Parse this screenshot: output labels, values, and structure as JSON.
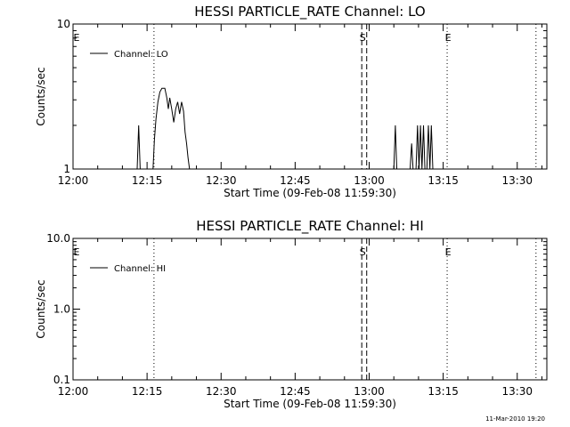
{
  "footer": {
    "timestamp": "11-Mar-2010 19:20"
  },
  "chart_data": [
    {
      "type": "line",
      "title": "HESSI PARTICLE_RATE Channel: LO",
      "xlabel": "Start Time (09-Feb-08 11:59:30)",
      "ylabel": "Counts/sec",
      "x_unit": "minutes after 12:00",
      "xlim": [
        0,
        96
      ],
      "ylim": [
        1,
        10
      ],
      "yscale": "log",
      "grid": false,
      "legend_position": "top-left",
      "x_ticks": [
        {
          "x": 0,
          "label": "12:00"
        },
        {
          "x": 15,
          "label": "12:15"
        },
        {
          "x": 30,
          "label": "12:30"
        },
        {
          "x": 45,
          "label": "12:45"
        },
        {
          "x": 60,
          "label": "13:00"
        },
        {
          "x": 75,
          "label": "13:15"
        },
        {
          "x": 90,
          "label": "13:30"
        }
      ],
      "y_ticks": [
        {
          "y": 1,
          "label": "1"
        },
        {
          "y": 10,
          "label": "10"
        }
      ],
      "series": [
        {
          "name": "Channel: LO",
          "color": "#000000",
          "segments": [
            [
              [
                13.0,
                1
              ],
              [
                13.3,
                2
              ],
              [
                13.6,
                1
              ]
            ],
            [
              [
                16.2,
                1
              ],
              [
                16.5,
                1.6
              ],
              [
                16.8,
                2.2
              ],
              [
                17.2,
                2.9
              ],
              [
                17.6,
                3.4
              ],
              [
                18.0,
                3.6
              ],
              [
                18.6,
                3.6
              ],
              [
                19.0,
                3.1
              ],
              [
                19.3,
                2.6
              ],
              [
                19.6,
                3.1
              ],
              [
                20.0,
                2.6
              ],
              [
                20.4,
                2.1
              ],
              [
                20.8,
                2.6
              ],
              [
                21.2,
                2.9
              ],
              [
                21.6,
                2.4
              ],
              [
                22.0,
                2.9
              ],
              [
                22.4,
                2.5
              ],
              [
                22.7,
                1.8
              ],
              [
                23.0,
                1.5
              ],
              [
                23.3,
                1.2
              ],
              [
                23.6,
                1
              ]
            ],
            [
              [
                65.0,
                1
              ],
              [
                65.3,
                2
              ],
              [
                65.6,
                1
              ]
            ],
            [
              [
                68.3,
                1
              ],
              [
                68.6,
                1.5
              ],
              [
                68.9,
                1
              ]
            ],
            [
              [
                69.5,
                1
              ],
              [
                69.8,
                2
              ],
              [
                70.1,
                1
              ],
              [
                70.4,
                2
              ],
              [
                70.7,
                1
              ],
              [
                71.0,
                2
              ],
              [
                71.3,
                1
              ]
            ],
            [
              [
                71.7,
                1
              ],
              [
                72.0,
                2
              ],
              [
                72.3,
                1
              ],
              [
                72.6,
                2
              ],
              [
                72.9,
                1
              ]
            ]
          ]
        }
      ],
      "markers": [
        {
          "x": 16.4,
          "label": "",
          "style": "dotted"
        },
        {
          "x": 75.8,
          "label": "E",
          "style": "dotted"
        },
        {
          "x": 93.8,
          "label": "",
          "style": "dotted"
        },
        {
          "x": 58.5,
          "label": "S",
          "style": "dashed"
        },
        {
          "x": 59.5,
          "label": "",
          "style": "dashed"
        }
      ],
      "edge_label": "E"
    },
    {
      "type": "line",
      "title": "HESSI PARTICLE_RATE Channel: HI",
      "xlabel": "Start Time (09-Feb-08 11:59:30)",
      "ylabel": "Counts/sec",
      "x_unit": "minutes after 12:00",
      "xlim": [
        0,
        96
      ],
      "ylim": [
        0.1,
        10
      ],
      "yscale": "log",
      "grid": false,
      "legend_position": "top-left",
      "x_ticks": [
        {
          "x": 0,
          "label": "12:00"
        },
        {
          "x": 15,
          "label": "12:15"
        },
        {
          "x": 30,
          "label": "12:30"
        },
        {
          "x": 45,
          "label": "12:45"
        },
        {
          "x": 60,
          "label": "13:00"
        },
        {
          "x": 75,
          "label": "13:15"
        },
        {
          "x": 90,
          "label": "13:30"
        }
      ],
      "y_ticks": [
        {
          "y": 0.1,
          "label": "0.1"
        },
        {
          "y": 1,
          "label": "1.0"
        },
        {
          "y": 10,
          "label": "10.0"
        }
      ],
      "series": [
        {
          "name": "Channel: HI",
          "color": "#000000",
          "segments": []
        }
      ],
      "markers": [
        {
          "x": 16.4,
          "label": "",
          "style": "dotted"
        },
        {
          "x": 75.8,
          "label": "E",
          "style": "dotted"
        },
        {
          "x": 93.8,
          "label": "",
          "style": "dotted"
        },
        {
          "x": 58.5,
          "label": "S",
          "style": "dashed"
        },
        {
          "x": 59.5,
          "label": "",
          "style": "dashed"
        }
      ],
      "edge_label": "E"
    }
  ]
}
